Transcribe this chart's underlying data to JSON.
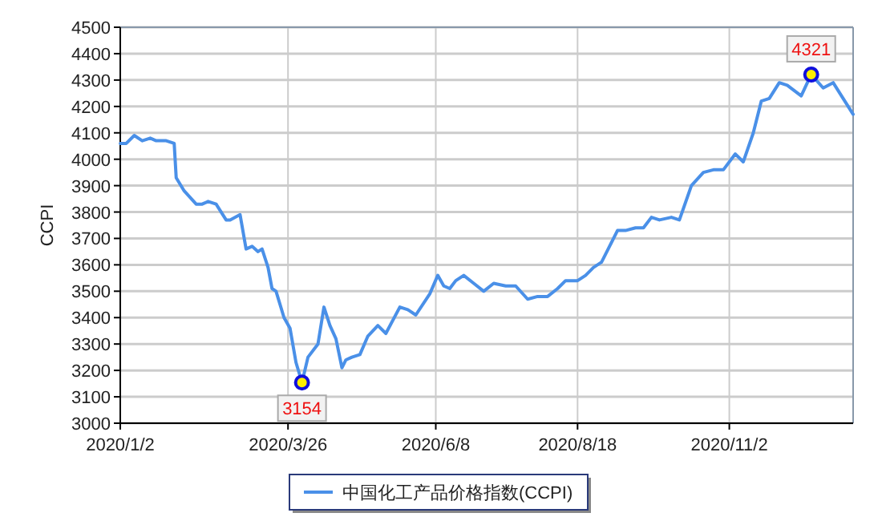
{
  "chart_data": {
    "type": "line",
    "ylabel": "CCPI",
    "xlim": [
      "2020-01-02",
      "2021-01-03"
    ],
    "ylim": [
      3000,
      4500
    ],
    "xticks": [
      {
        "value": "2020-01-02",
        "label": "2020/1/2"
      },
      {
        "value": "2020-03-26",
        "label": "2020/3/26"
      },
      {
        "value": "2020-06-08",
        "label": "2020/6/8"
      },
      {
        "value": "2020-08-18",
        "label": "2020/8/18"
      },
      {
        "value": "2020-11-02",
        "label": "2020/11/2"
      }
    ],
    "yticks": [
      3000,
      3100,
      3200,
      3300,
      3400,
      3500,
      3600,
      3700,
      3800,
      3900,
      4000,
      4100,
      4200,
      4300,
      4400,
      4500
    ],
    "grid": true,
    "legend": "bottom",
    "marker": "none",
    "line_style": "solid",
    "x": [
      "2020-01-02",
      "2020-01-05",
      "2020-01-09",
      "2020-01-13",
      "2020-01-17",
      "2020-01-20",
      "2020-01-25",
      "2020-01-29",
      "2020-01-30",
      "2020-02-03",
      "2020-02-09",
      "2020-02-12",
      "2020-02-15",
      "2020-02-19",
      "2020-02-24",
      "2020-02-26",
      "2020-03-02",
      "2020-03-05",
      "2020-03-08",
      "2020-03-11",
      "2020-03-13",
      "2020-03-16",
      "2020-03-18",
      "2020-03-20",
      "2020-03-24",
      "2020-03-27",
      "2020-03-30",
      "2020-04-02",
      "2020-04-05",
      "2020-04-10",
      "2020-04-13",
      "2020-04-16",
      "2020-04-19",
      "2020-04-22",
      "2020-04-24",
      "2020-04-27",
      "2020-05-01",
      "2020-05-05",
      "2020-05-10",
      "2020-05-14",
      "2020-05-21",
      "2020-05-25",
      "2020-05-29",
      "2020-06-05",
      "2020-06-09",
      "2020-06-12",
      "2020-06-15",
      "2020-06-18",
      "2020-06-22",
      "2020-06-27",
      "2020-07-02",
      "2020-07-07",
      "2020-07-13",
      "2020-07-18",
      "2020-07-24",
      "2020-07-29",
      "2020-08-03",
      "2020-08-08",
      "2020-08-12",
      "2020-08-18",
      "2020-08-22",
      "2020-08-26",
      "2020-08-30",
      "2020-09-03",
      "2020-09-07",
      "2020-09-11",
      "2020-09-16",
      "2020-09-20",
      "2020-09-24",
      "2020-09-28",
      "2020-10-04",
      "2020-10-08",
      "2020-10-14",
      "2020-10-20",
      "2020-10-25",
      "2020-10-30",
      "2020-11-05",
      "2020-11-09",
      "2020-11-14",
      "2020-11-18",
      "2020-11-22",
      "2020-11-27",
      "2020-12-01",
      "2020-12-08",
      "2020-12-13",
      "2020-12-19",
      "2020-12-24",
      "2020-12-29",
      "2021-01-03"
    ],
    "series": [
      {
        "name": "中国化工产品价格指数(CCPI)",
        "color": "#4a90e8",
        "values": [
          4060,
          4060,
          4090,
          4070,
          4080,
          4070,
          4070,
          4060,
          3930,
          3880,
          3830,
          3830,
          3840,
          3830,
          3770,
          3770,
          3790,
          3660,
          3670,
          3650,
          3660,
          3590,
          3510,
          3500,
          3400,
          3360,
          3230,
          3154,
          3250,
          3300,
          3440,
          3370,
          3320,
          3210,
          3240,
          3250,
          3260,
          3330,
          3370,
          3340,
          3440,
          3430,
          3410,
          3490,
          3560,
          3520,
          3510,
          3540,
          3560,
          3530,
          3500,
          3530,
          3520,
          3520,
          3470,
          3480,
          3480,
          3510,
          3540,
          3540,
          3560,
          3590,
          3610,
          3670,
          3730,
          3730,
          3740,
          3740,
          3780,
          3770,
          3780,
          3770,
          3900,
          3950,
          3960,
          3960,
          4020,
          3990,
          4100,
          4220,
          4230,
          4290,
          4280,
          4240,
          4321,
          4270,
          4290,
          4230,
          4170
        ]
      }
    ],
    "annotations": [
      {
        "text": "3154",
        "x": "2020-04-02",
        "y": 3154
      },
      {
        "text": "4321",
        "x": "2020-12-13",
        "y": 4321
      }
    ]
  }
}
